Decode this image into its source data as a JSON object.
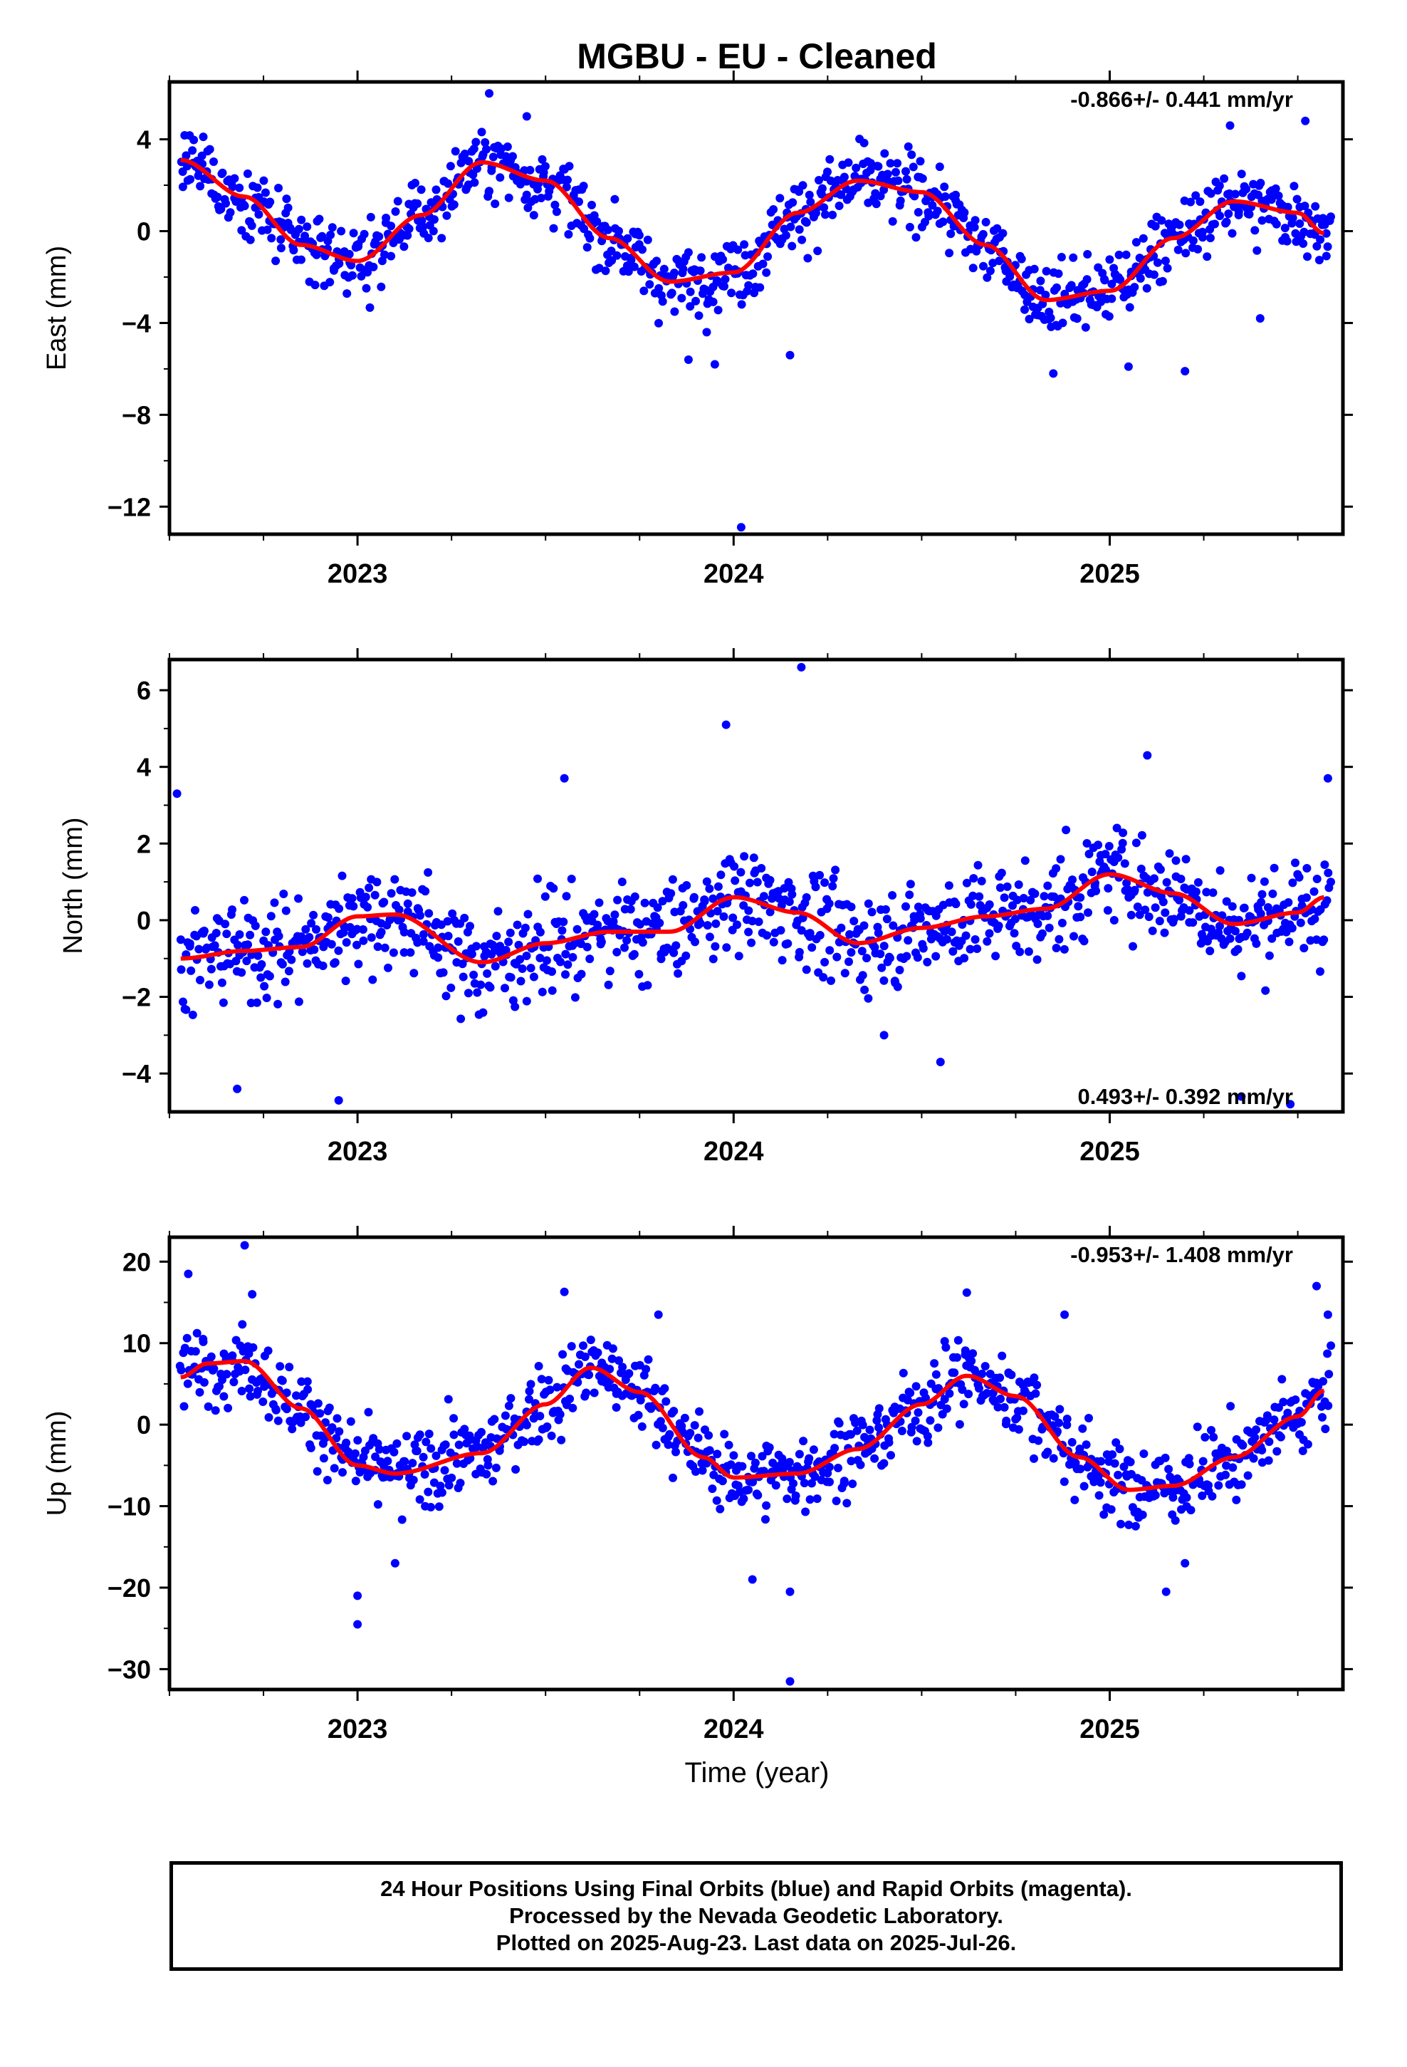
{
  "title": "MGBU  - EU - Cleaned",
  "colors": {
    "final_orbits": "#0000ff",
    "rapid_orbits": "#ff00ff",
    "model_fit": "#ff0000",
    "frame": "#000000"
  },
  "x_axis_label": "Time (year)",
  "chart_data": [
    {
      "type": "scatter",
      "component": "East",
      "ylabel": "East (mm)",
      "rate_label": "-0.866+/- 0.441 mm/yr",
      "xlim": [
        2022.5,
        2025.62
      ],
      "ylim": [
        -13.2,
        6.5
      ],
      "yticks": [
        4,
        0,
        -4,
        -8,
        -12
      ],
      "ytick_labels": [
        "4",
        "0",
        "−4",
        "−8",
        "−12"
      ],
      "xticks": [
        2023,
        2024,
        2025
      ],
      "xtick_labels": [
        "2023",
        "2024",
        "2025"
      ],
      "model_points": [
        [
          2022.53,
          3.1
        ],
        [
          2022.7,
          1.5
        ],
        [
          2022.85,
          -0.6
        ],
        [
          2023.0,
          -1.3
        ],
        [
          2023.17,
          0.7
        ],
        [
          2023.33,
          3.0
        ],
        [
          2023.5,
          2.2
        ],
        [
          2023.67,
          -0.3
        ],
        [
          2023.83,
          -2.2
        ],
        [
          2024.0,
          -1.8
        ],
        [
          2024.17,
          0.8
        ],
        [
          2024.33,
          2.2
        ],
        [
          2024.5,
          1.7
        ],
        [
          2024.67,
          -0.6
        ],
        [
          2024.83,
          -3.0
        ],
        [
          2025.0,
          -2.6
        ],
        [
          2025.17,
          -0.3
        ],
        [
          2025.33,
          1.3
        ],
        [
          2025.5,
          0.8
        ],
        [
          2025.57,
          -0.1
        ]
      ],
      "scatter_spread": 1.3,
      "outliers": [
        [
          2023.35,
          6.0
        ],
        [
          2023.45,
          5.0
        ],
        [
          2023.88,
          -5.6
        ],
        [
          2023.95,
          -5.8
        ],
        [
          2024.02,
          -12.9
        ],
        [
          2024.15,
          -5.4
        ],
        [
          2024.85,
          -6.2
        ],
        [
          2025.05,
          -5.9
        ],
        [
          2025.2,
          -6.1
        ],
        [
          2025.32,
          4.6
        ],
        [
          2025.4,
          -3.8
        ],
        [
          2025.52,
          4.8
        ]
      ]
    },
    {
      "type": "scatter",
      "component": "North",
      "ylabel": "North (mm)",
      "rate_label": "0.493+/- 0.392 mm/yr",
      "xlim": [
        2022.5,
        2025.62
      ],
      "ylim": [
        -5.0,
        6.8
      ],
      "yticks": [
        6,
        4,
        2,
        0,
        -2,
        -4
      ],
      "ytick_labels": [
        "6",
        "4",
        "2",
        "0",
        "−2",
        "−4"
      ],
      "xticks": [
        2023,
        2024,
        2025
      ],
      "xtick_labels": [
        "2023",
        "2024",
        "2025"
      ],
      "model_points": [
        [
          2022.53,
          -1.0
        ],
        [
          2022.7,
          -0.8
        ],
        [
          2022.85,
          -0.7
        ],
        [
          2023.0,
          0.1
        ],
        [
          2023.1,
          0.15
        ],
        [
          2023.33,
          -1.1
        ],
        [
          2023.5,
          -0.6
        ],
        [
          2023.67,
          -0.3
        ],
        [
          2023.83,
          -0.3
        ],
        [
          2024.0,
          0.6
        ],
        [
          2024.17,
          0.2
        ],
        [
          2024.33,
          -0.6
        ],
        [
          2024.5,
          -0.2
        ],
        [
          2024.67,
          0.1
        ],
        [
          2024.83,
          0.3
        ],
        [
          2025.0,
          1.2
        ],
        [
          2025.17,
          0.7
        ],
        [
          2025.33,
          -0.1
        ],
        [
          2025.5,
          0.2
        ],
        [
          2025.57,
          0.6
        ]
      ],
      "scatter_spread": 1.1,
      "outliers": [
        [
          2022.52,
          3.3
        ],
        [
          2022.68,
          -4.4
        ],
        [
          2022.95,
          -4.7
        ],
        [
          2023.55,
          3.7
        ],
        [
          2023.98,
          5.1
        ],
        [
          2024.18,
          6.6
        ],
        [
          2024.55,
          -3.7
        ],
        [
          2024.4,
          -3.0
        ],
        [
          2025.1,
          4.3
        ],
        [
          2025.35,
          -4.6
        ],
        [
          2025.48,
          -4.8
        ],
        [
          2025.58,
          3.7
        ]
      ]
    },
    {
      "type": "scatter",
      "component": "Up",
      "ylabel": "Up (mm)",
      "rate_label": "-0.953+/- 1.408 mm/yr",
      "xlim": [
        2022.5,
        2025.62
      ],
      "ylim": [
        -32.5,
        23.0
      ],
      "yticks": [
        20,
        10,
        0,
        -10,
        -20,
        -30
      ],
      "ytick_labels": [
        "20",
        "10",
        "0",
        "−10",
        "−20",
        "−30"
      ],
      "xticks": [
        2023,
        2024,
        2025
      ],
      "xtick_labels": [
        "2023",
        "2024",
        "2025"
      ],
      "model_points": [
        [
          2022.53,
          5.8
        ],
        [
          2022.6,
          7.5
        ],
        [
          2022.7,
          7.8
        ],
        [
          2022.85,
          2.0
        ],
        [
          2023.0,
          -5.0
        ],
        [
          2023.1,
          -6.0
        ],
        [
          2023.33,
          -3.5
        ],
        [
          2023.5,
          2.5
        ],
        [
          2023.62,
          7.0
        ],
        [
          2023.75,
          4.0
        ],
        [
          2023.92,
          -4.0
        ],
        [
          2024.0,
          -6.5
        ],
        [
          2024.17,
          -6.0
        ],
        [
          2024.33,
          -3.0
        ],
        [
          2024.5,
          2.5
        ],
        [
          2024.62,
          6.0
        ],
        [
          2024.75,
          3.5
        ],
        [
          2024.92,
          -4.0
        ],
        [
          2025.05,
          -8.0
        ],
        [
          2025.17,
          -7.5
        ],
        [
          2025.33,
          -4.0
        ],
        [
          2025.5,
          1.0
        ],
        [
          2025.57,
          4.2
        ]
      ],
      "scatter_spread": 4.0,
      "outliers": [
        [
          2022.55,
          18.5
        ],
        [
          2022.7,
          22.0
        ],
        [
          2022.72,
          16.0
        ],
        [
          2023.0,
          -24.5
        ],
        [
          2023.0,
          -21.0
        ],
        [
          2023.1,
          -17.0
        ],
        [
          2023.55,
          16.3
        ],
        [
          2023.8,
          13.5
        ],
        [
          2024.05,
          -19.0
        ],
        [
          2024.15,
          -20.5
        ],
        [
          2024.15,
          -31.5
        ],
        [
          2024.62,
          16.2
        ],
        [
          2024.88,
          13.5
        ],
        [
          2025.15,
          -20.5
        ],
        [
          2025.2,
          -17.0
        ],
        [
          2025.55,
          17.0
        ],
        [
          2025.58,
          13.5
        ]
      ]
    }
  ],
  "footer": {
    "line1": "24 Hour Positions Using Final Orbits (blue) and Rapid Orbits (magenta).",
    "line2": "Processed by the Nevada Geodetic Laboratory.",
    "line3": "Plotted on 2025-Aug-23. Last data on 2025-Jul-26."
  }
}
